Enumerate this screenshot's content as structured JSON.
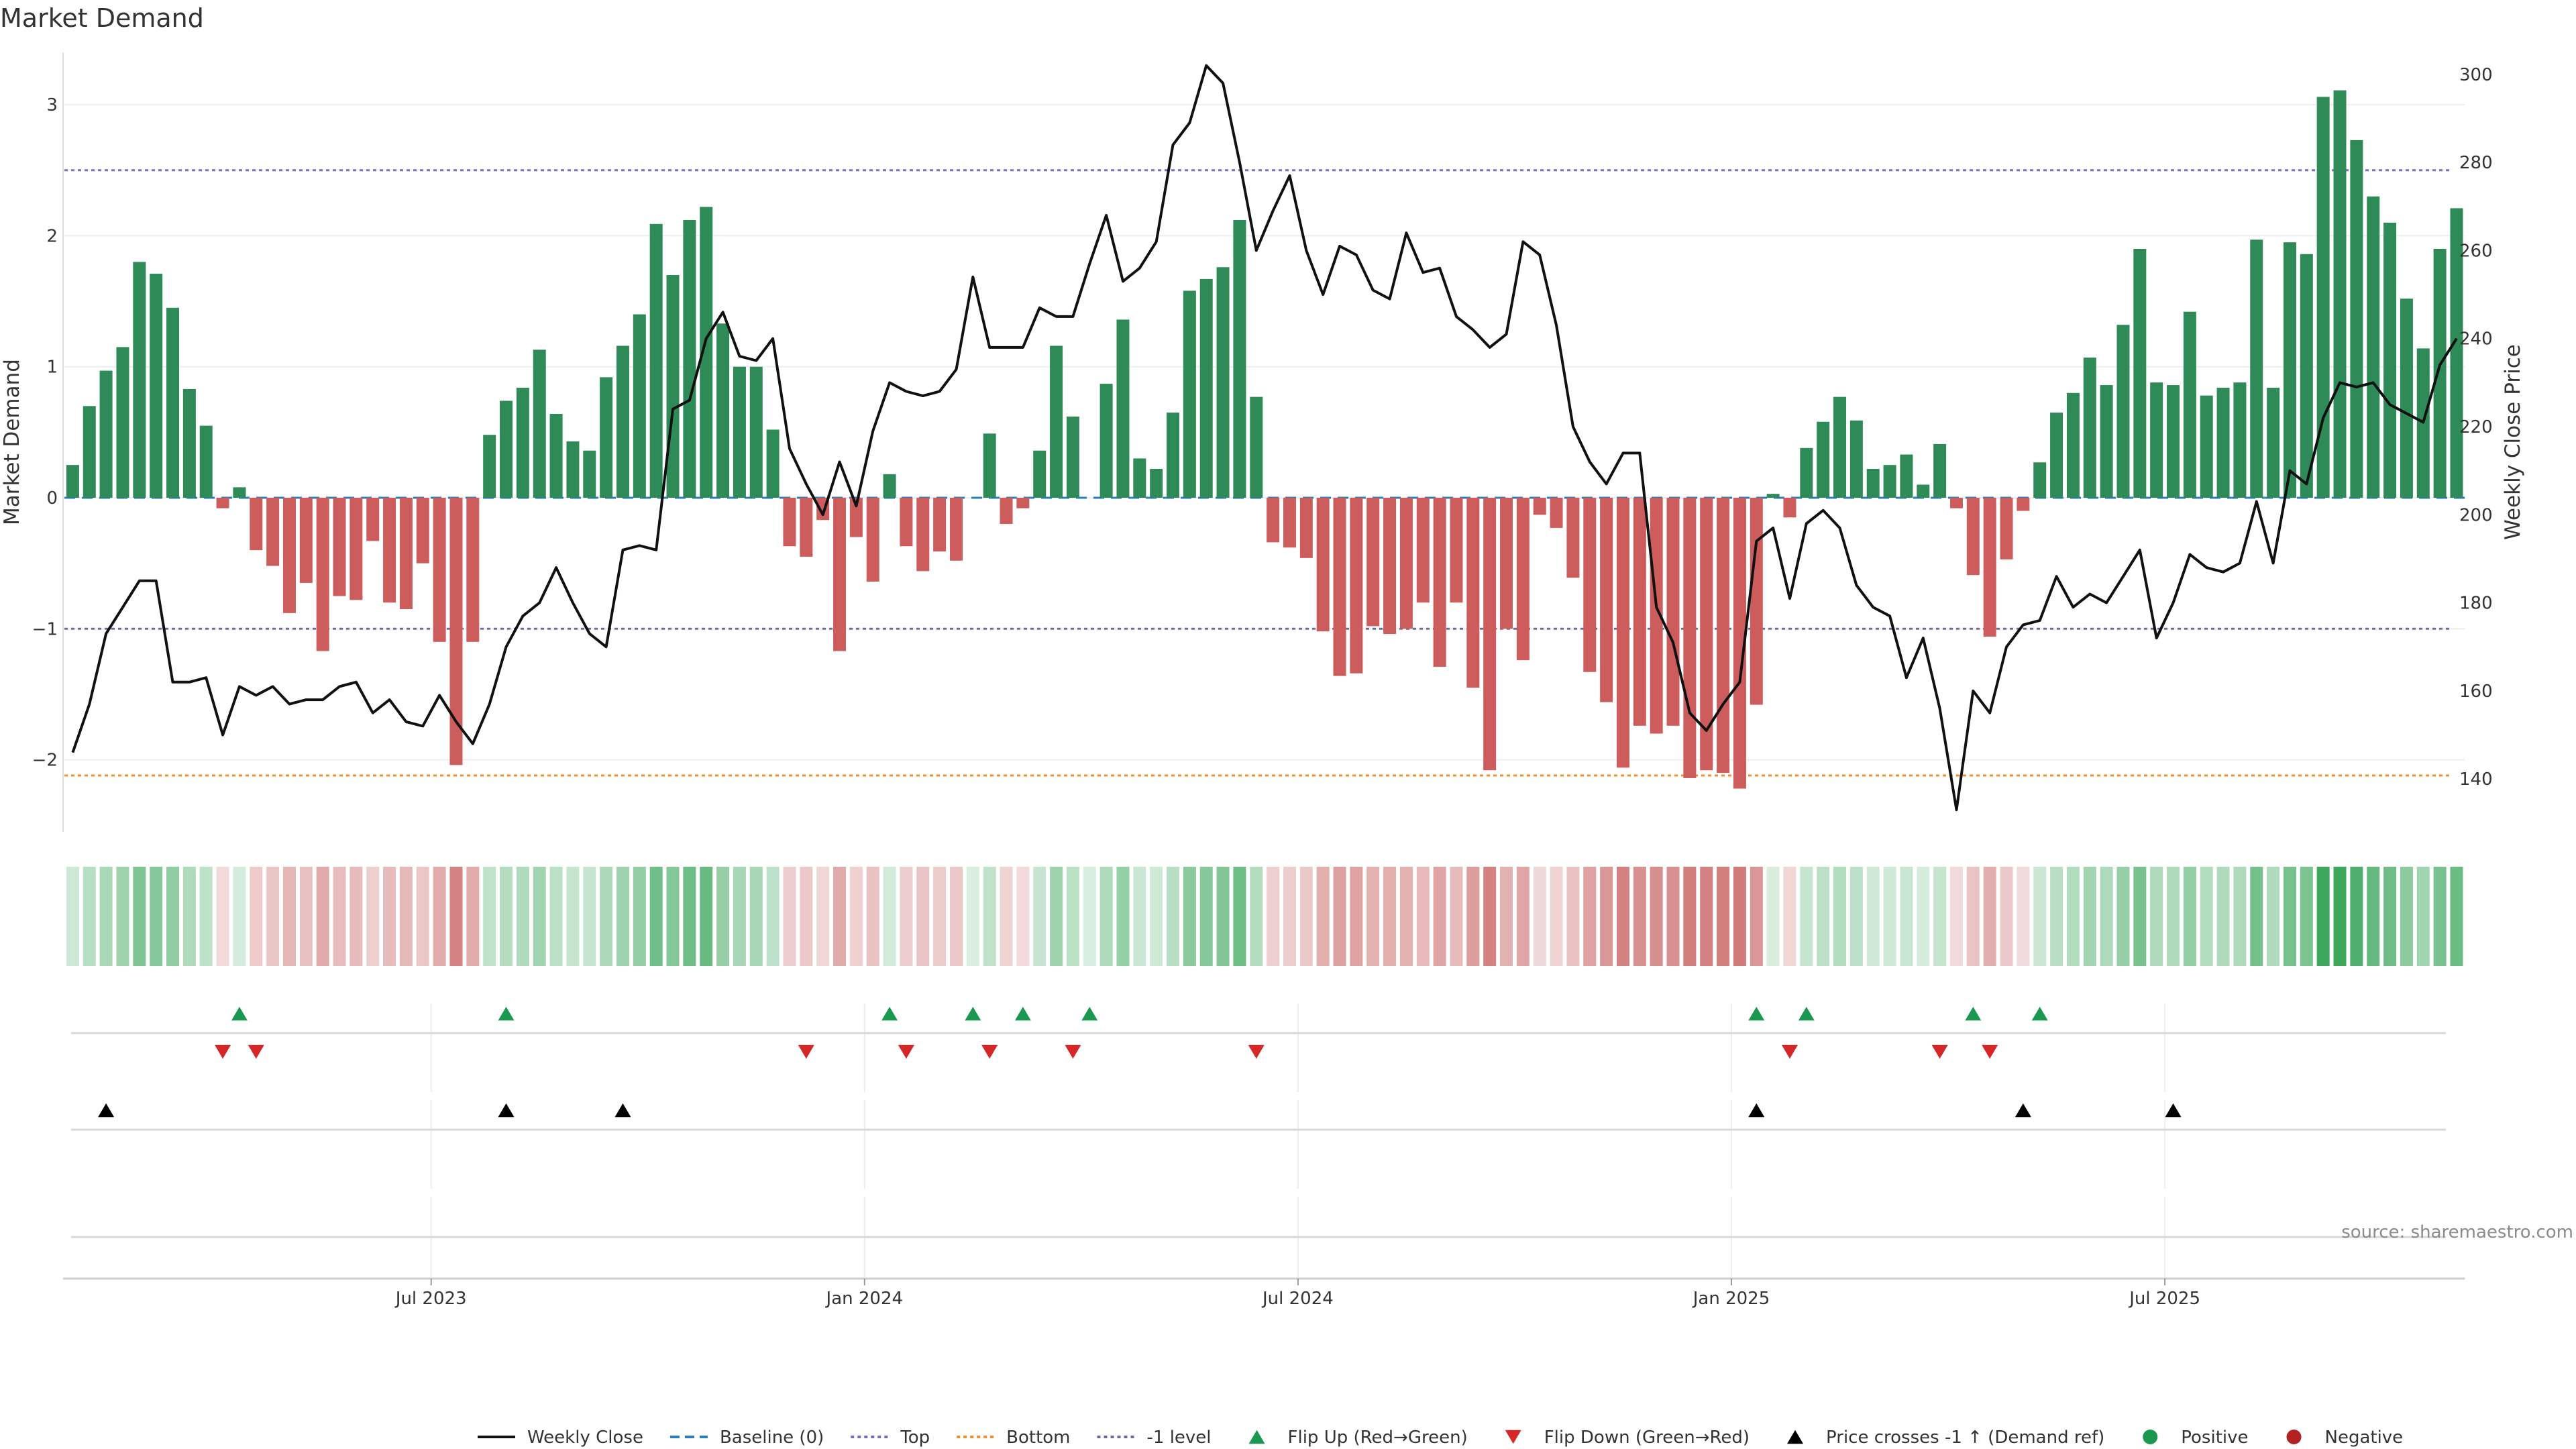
{
  "chart_data": {
    "type": "bar",
    "title": "Market Demand",
    "ylabel_left": "Market Demand",
    "ylabel_right": "Weekly Close Price",
    "y_left_range": [
      -2.55,
      3.4
    ],
    "y_right_range": [
      128,
      305
    ],
    "y_left_ticks": [
      -2,
      -1,
      0,
      1,
      2,
      3
    ],
    "y_left_tick_labels": [
      "−2",
      "−1",
      "0",
      "1",
      "2",
      "3"
    ],
    "y_right_ticks": [
      140,
      160,
      180,
      200,
      220,
      240,
      260,
      280,
      300
    ],
    "y_right_tick_labels": [
      "140",
      "160",
      "180",
      "200",
      "220",
      "240",
      "260",
      "280",
      "300"
    ],
    "x_tick_labels": [
      "Jul 2023",
      "Jan 2024",
      "Jul 2024",
      "Jan 2025",
      "Jul 2025"
    ],
    "x_tick_weeks": [
      22,
      48,
      74,
      100,
      126
    ],
    "reference_levels": {
      "top": 2.5,
      "bottom": -2.12,
      "minus_one": -1,
      "baseline": 0
    },
    "weeks": 144,
    "demand": [
      0.25,
      0.7,
      0.97,
      1.15,
      1.8,
      1.71,
      1.45,
      0.83,
      0.55,
      -0.08,
      0.08,
      -0.4,
      -0.52,
      -0.88,
      -0.65,
      -1.17,
      -0.75,
      -0.78,
      -0.33,
      -0.8,
      -0.85,
      -0.5,
      -1.1,
      -2.04,
      -1.1,
      0.48,
      0.74,
      0.84,
      1.13,
      0.64,
      0.43,
      0.36,
      0.92,
      1.16,
      1.4,
      2.09,
      1.7,
      2.12,
      2.22,
      1.33,
      1.0,
      1.0,
      0.52,
      -0.37,
      -0.45,
      -0.17,
      -1.17,
      -0.3,
      -0.64,
      0.18,
      -0.37,
      -0.56,
      -0.41,
      -0.48,
      0.0,
      0.49,
      -0.2,
      -0.08,
      0.36,
      1.16,
      0.62,
      0.0,
      0.87,
      1.36,
      0.3,
      0.22,
      0.65,
      1.58,
      1.67,
      1.76,
      2.12,
      0.77,
      -0.34,
      -0.38,
      -0.46,
      -1.02,
      -1.36,
      -1.34,
      -0.98,
      -1.04,
      -1.0,
      -0.8,
      -1.29,
      -0.8,
      -1.45,
      -2.08,
      -1.0,
      -1.24,
      -0.13,
      -0.23,
      -0.61,
      -1.33,
      -1.56,
      -2.06,
      -1.74,
      -1.8,
      -1.74,
      -2.14,
      -2.08,
      -2.1,
      -2.22,
      -1.58,
      0.03,
      -0.15,
      0.38,
      0.58,
      0.77,
      0.59,
      0.22,
      0.25,
      0.33,
      0.1,
      0.41,
      -0.08,
      -0.59,
      -1.06,
      -0.47,
      -0.1,
      0.27,
      0.65,
      0.8,
      1.07,
      0.86,
      1.32,
      1.9,
      0.88,
      0.86,
      1.42,
      0.78,
      0.84,
      0.88,
      1.97,
      0.84,
      1.95,
      1.86,
      3.06,
      3.11,
      2.73,
      2.3,
      2.1,
      1.52,
      1.14,
      1.9,
      2.21
    ],
    "close": [
      146,
      157,
      173,
      179,
      185,
      185,
      162,
      162,
      163,
      150,
      161,
      159,
      161,
      157,
      158,
      158,
      161,
      162,
      155,
      158,
      153,
      152,
      159,
      153,
      148,
      157,
      170,
      177,
      180,
      188,
      180,
      173,
      170,
      192,
      193,
      192,
      224,
      226,
      240,
      246,
      236,
      235,
      240,
      215,
      207,
      200,
      212,
      202,
      219,
      230,
      228,
      227,
      228,
      233,
      254,
      238,
      238,
      238,
      247,
      245,
      245,
      257,
      268,
      253,
      256,
      262,
      284,
      289,
      302,
      298,
      280,
      260,
      269,
      277,
      260,
      250,
      261,
      259,
      251,
      249,
      264,
      255,
      256,
      245,
      242,
      238,
      241,
      262,
      259,
      243,
      220,
      212,
      207,
      214,
      214,
      179,
      171,
      155,
      151,
      157,
      162,
      194,
      197,
      181,
      198,
      201,
      197,
      184,
      179,
      177,
      163,
      172,
      156,
      133,
      160,
      155,
      170,
      175,
      176,
      186,
      179,
      182,
      180,
      186,
      192,
      172,
      180,
      191,
      188,
      187,
      189,
      203,
      189,
      210,
      207,
      222,
      230,
      229,
      230,
      225,
      223,
      221,
      234,
      240
    ],
    "demand_strip": {
      "shade_scale": "intensity by |demand|, green positive, red negative"
    },
    "markers": {
      "flip_up_weeks": [
        10,
        26,
        49,
        54,
        57,
        61,
        101,
        104,
        114,
        118
      ],
      "flip_down_weeks": [
        9,
        11,
        44,
        50,
        55,
        60,
        71,
        103,
        112,
        115
      ],
      "price_cross_weeks": [
        2,
        26,
        33,
        101,
        117,
        126
      ]
    },
    "legend": [
      {
        "label": "Weekly Close",
        "kind": "line-solid",
        "color": "#111111"
      },
      {
        "label": "Baseline (0)",
        "kind": "line-dashed",
        "color": "#2c7fb8"
      },
      {
        "label": "Top",
        "kind": "line-dotted",
        "color": "#7570b3"
      },
      {
        "label": "Bottom",
        "kind": "line-dotted",
        "color": "#f28e2b"
      },
      {
        "label": "-1 level",
        "kind": "line-dotted",
        "color": "#6b6b9a"
      },
      {
        "label": "Flip Up (Red→Green)",
        "kind": "triangle-up",
        "color": "#1a9850"
      },
      {
        "label": "Flip Down (Green→Red)",
        "kind": "triangle-down",
        "color": "#d62728"
      },
      {
        "label": "Price crosses -1 ↑ (Demand ref)",
        "kind": "triangle-up",
        "color": "#000000"
      },
      {
        "label": "Positive",
        "kind": "dot",
        "color": "#1a9850"
      },
      {
        "label": "Negative",
        "kind": "dot",
        "color": "#b22222"
      }
    ],
    "legend_position": "bottom-center"
  },
  "source": "source: sharemaestro.com",
  "colors": {
    "positive_bar": "#2e8b57",
    "negative_bar": "#cd5c5c",
    "close_line": "#111111",
    "top_line": "#7570b3",
    "bottom_line": "#f28e2b",
    "minus_one_line": "#6b6b9a",
    "baseline": "#2c7fb8",
    "flip_up": "#1a9850",
    "flip_down": "#d62728",
    "price_cross": "#000000"
  }
}
